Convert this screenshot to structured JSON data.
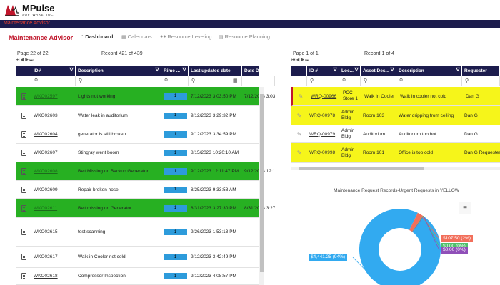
{
  "logo": {
    "name": "MPulse",
    "tagline": "SOFTWARE, INC."
  },
  "topbar": {
    "title": "Maintenance Advisor"
  },
  "nav": {
    "app_title": "Maintenance Advisor",
    "tabs": [
      {
        "label": "Dashboard",
        "icon": "dashboard-icon",
        "active": true
      },
      {
        "label": "Calendars",
        "icon": "calendar-icon",
        "active": false
      },
      {
        "label": "Resource Leveling",
        "icon": "people-icon",
        "active": false
      },
      {
        "label": "Resource Planning",
        "icon": "planning-icon",
        "active": false
      }
    ]
  },
  "work_orders": {
    "page_info": "Page 22 of 22",
    "record_info": "Record 421 of 439",
    "columns": [
      "ID#",
      "Description",
      "Rime ...",
      "Last updated date",
      "Date Done"
    ],
    "rows": [
      {
        "id": "WKO02597",
        "description": "Lights not working",
        "rime": "1",
        "updated": "7/12/2023 3:03:50 PM",
        "done": "7/12/2023 3:03:",
        "highlight": "green"
      },
      {
        "id": "WKO02603",
        "description": "Water leak in auditorium",
        "rime": "1",
        "updated": "9/12/2023 3:29:32 PM",
        "done": "",
        "highlight": ""
      },
      {
        "id": "WKO02604",
        "description": "generator is still broken",
        "rime": "1",
        "updated": "9/12/2023 3:34:59 PM",
        "done": "",
        "highlight": ""
      },
      {
        "id": "WKO02607",
        "description": "Stingray went boom",
        "rime": "1",
        "updated": "8/15/2023 10:20:10 AM",
        "done": "",
        "highlight": ""
      },
      {
        "id": "WKO02608",
        "description": "Belt Missing on Backup Generator",
        "rime": "1",
        "updated": "9/12/2023 12:11:47 PM",
        "done": "9/12/2023 12:11",
        "highlight": "green"
      },
      {
        "id": "WKO02609",
        "description": "Repair broken hose",
        "rime": "1",
        "updated": "8/25/2023 9:33:58 AM",
        "done": "",
        "highlight": ""
      },
      {
        "id": "WKO02611",
        "description": "Belt missing on Generator",
        "rime": "1",
        "updated": "8/31/2023 3:27:30 PM",
        "done": "8/31/2023 3:27:",
        "highlight": "green"
      },
      {
        "id": "WKO02615",
        "description": "test scanning",
        "rime": "1",
        "updated": "9/26/2023 1:53:13 PM",
        "done": "",
        "highlight": ""
      },
      {
        "id": "WKO02617",
        "description": "Walk in Cooler not cold",
        "rime": "1",
        "updated": "9/12/2023 3:42:49 PM",
        "done": "",
        "highlight": ""
      },
      {
        "id": "WKO02618",
        "description": "Compressor Inspection",
        "rime": "1",
        "updated": "9/12/2023 4:08:57 PM",
        "done": "",
        "highlight": ""
      }
    ]
  },
  "requests": {
    "page_info": "Page 1 of 1",
    "record_info": "Record 1 of 4",
    "columns": [
      "ID #",
      "Loc...",
      "Asset Des...",
      "Description",
      "Requester"
    ],
    "rows": [
      {
        "id": "WRQ-00966",
        "location": "PCC Store 1",
        "asset": "Walk In Cooler",
        "description": "Walk in cooler not cold",
        "requester": "Dan G",
        "highlight": "yellow"
      },
      {
        "id": "WRQ-00978",
        "location": "Admin Bldg",
        "asset": "Room 103",
        "description": "Water dripping from ceiling",
        "requester": "Dan G",
        "highlight": "yellow"
      },
      {
        "id": "WRQ-00979",
        "location": "Admin Bldg",
        "asset": "Auditorium",
        "description": "Auditorium too hot",
        "requester": "Dan G",
        "highlight": ""
      },
      {
        "id": "WRQ-00998",
        "location": "Admin Bldg",
        "asset": "Room 101",
        "description": "Office is too cold",
        "requester": "Dan G Requester",
        "highlight": "yellow"
      }
    ]
  },
  "chart_data": {
    "type": "pie",
    "title": "Maintenance Request Records-Urgent Requests in YELLOW",
    "slices": [
      {
        "label": "$4,441.25 (94%)",
        "value": 4441.25,
        "percent": 94,
        "color": "#32aaf0"
      },
      {
        "label": "$107.50 (2%)",
        "value": 107.5,
        "percent": 2,
        "color": "#f26f5b"
      },
      {
        "label": "$0.00 (0%)",
        "value": 0,
        "percent": 0,
        "color": "#4fbf6b"
      },
      {
        "label": "$0.00 (0%)",
        "value": 0,
        "percent": 0,
        "color": "#8f4fb8"
      }
    ]
  }
}
